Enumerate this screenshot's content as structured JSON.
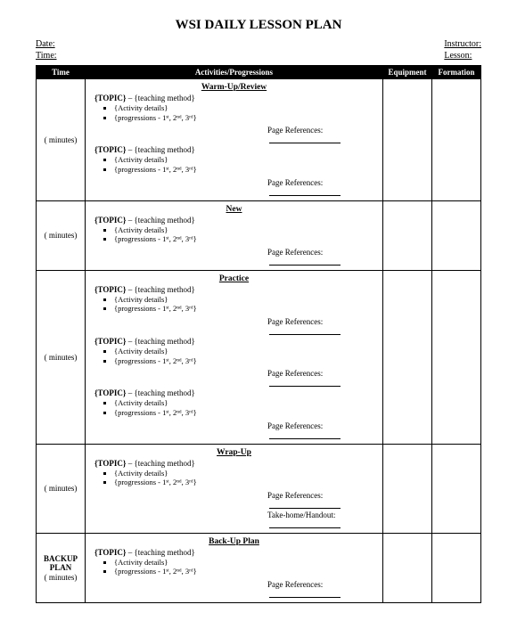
{
  "title": "WSI DAILY LESSON PLAN",
  "header": {
    "date_label": "Date:",
    "time_label": "Time:",
    "instructor_label": "Instructor:",
    "lesson_label": "Lesson:"
  },
  "columns": {
    "time": "Time",
    "activities": "Activities/Progressions",
    "equipment": "Equipment",
    "formation": "Formation"
  },
  "sections": {
    "warmup": "Warm-Up/Review",
    "new": "New",
    "practice": "Practice",
    "wrapup": "Wrap-Up",
    "backup": "Back-Up Plan"
  },
  "time_cell": "(   minutes)",
  "backup_time": "BACKUP PLAN",
  "backup_time2": "(   minutes)",
  "topic": {
    "title": "{TOPIC}",
    "dash": " – ",
    "method": "{teaching method}",
    "activity": "{Activity details}",
    "progressions": "{progressions - 1ˢᵗ, 2ⁿᵈ, 3ʳᵈ}"
  },
  "refs": {
    "page": "Page References:",
    "takehome": "Take-home/Handout:"
  }
}
